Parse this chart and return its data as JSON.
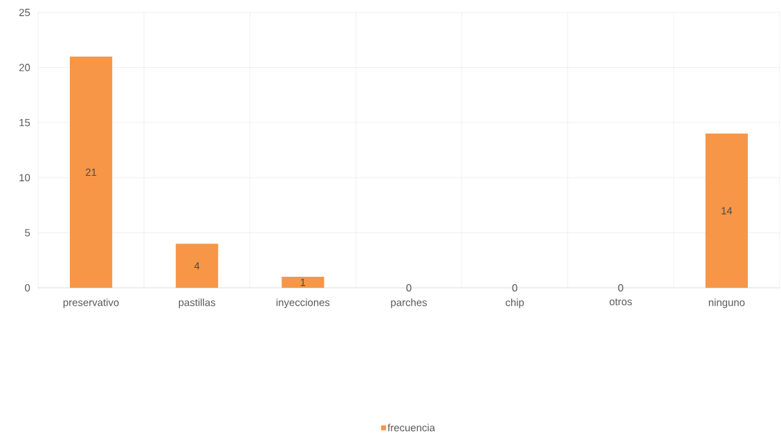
{
  "chart_data": {
    "type": "bar",
    "categories": [
      "preservativo",
      "pastillas",
      "inyecciones",
      "parches",
      "chip",
      "otros",
      "ninguno"
    ],
    "series": [
      {
        "name": "frecuencia",
        "color": "#f79646",
        "values": [
          21,
          4,
          1,
          0,
          0,
          0,
          14
        ]
      }
    ],
    "ylim": [
      0,
      25
    ],
    "yticks": [
      0,
      5,
      10,
      15,
      20,
      25
    ],
    "grid": true,
    "legend": "bottom",
    "data_labels": true
  }
}
